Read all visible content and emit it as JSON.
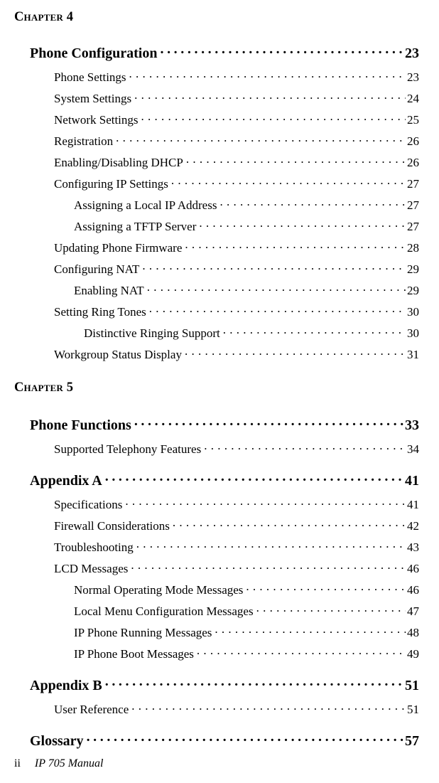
{
  "chapter4": {
    "heading": "Chapter 4",
    "section": {
      "label": "Phone Configuration",
      "page": "23"
    },
    "items": [
      {
        "level": 1,
        "label": "Phone Settings",
        "page": "23"
      },
      {
        "level": 1,
        "label": "System Settings",
        "page": "24"
      },
      {
        "level": 1,
        "label": "Network Settings",
        "page": "25"
      },
      {
        "level": 1,
        "label": "Registration",
        "page": "26"
      },
      {
        "level": 1,
        "label": "Enabling/Disabling DHCP",
        "page": "26"
      },
      {
        "level": 1,
        "label": "Configuring IP Settings",
        "page": "27"
      },
      {
        "level": 2,
        "label": "Assigning a Local IP Address",
        "page": "27"
      },
      {
        "level": 2,
        "label": "Assigning a TFTP Server",
        "page": "27"
      },
      {
        "level": 1,
        "label": "Updating Phone Firmware",
        "page": "28"
      },
      {
        "level": 1,
        "label": "Configuring NAT",
        "page": "29"
      },
      {
        "level": 2,
        "label": "Enabling NAT",
        "page": "29"
      },
      {
        "level": 1,
        "label": "Setting Ring Tones",
        "page": "30"
      },
      {
        "level": 3,
        "label": "Distinctive Ringing Support",
        "page": "30"
      },
      {
        "level": 1,
        "label": "Workgroup Status Display",
        "page": "31"
      }
    ]
  },
  "chapter5": {
    "heading": "Chapter 5",
    "groups": [
      {
        "section": {
          "label": "Phone Functions",
          "page": "33"
        },
        "items": [
          {
            "level": 1,
            "label": "Supported Telephony Features",
            "page": "34"
          }
        ]
      },
      {
        "section": {
          "label": "Appendix A",
          "page": "41"
        },
        "items": [
          {
            "level": 1,
            "label": "Specifications",
            "page": "41"
          },
          {
            "level": 1,
            "label": "Firewall Considerations",
            "page": "42"
          },
          {
            "level": 1,
            "label": "Troubleshooting",
            "page": "43"
          },
          {
            "level": 1,
            "label": "LCD Messages",
            "page": "46"
          },
          {
            "level": 2,
            "label": "Normal Operating Mode Messages",
            "page": "46"
          },
          {
            "level": 2,
            "label": "Local Menu Configuration Messages",
            "page": "47"
          },
          {
            "level": 2,
            "label": "IP Phone Running Messages",
            "page": "48"
          },
          {
            "level": 2,
            "label": "IP Phone Boot Messages",
            "page": "49"
          }
        ]
      },
      {
        "section": {
          "label": "Appendix B",
          "page": "51"
        },
        "items": [
          {
            "level": 1,
            "label": "User Reference",
            "page": "51"
          }
        ]
      },
      {
        "section": {
          "label": "Glossary",
          "page": "57"
        },
        "items": []
      }
    ]
  },
  "footer": {
    "page_number": "ii",
    "doc_title": "IP 705 Manual"
  }
}
